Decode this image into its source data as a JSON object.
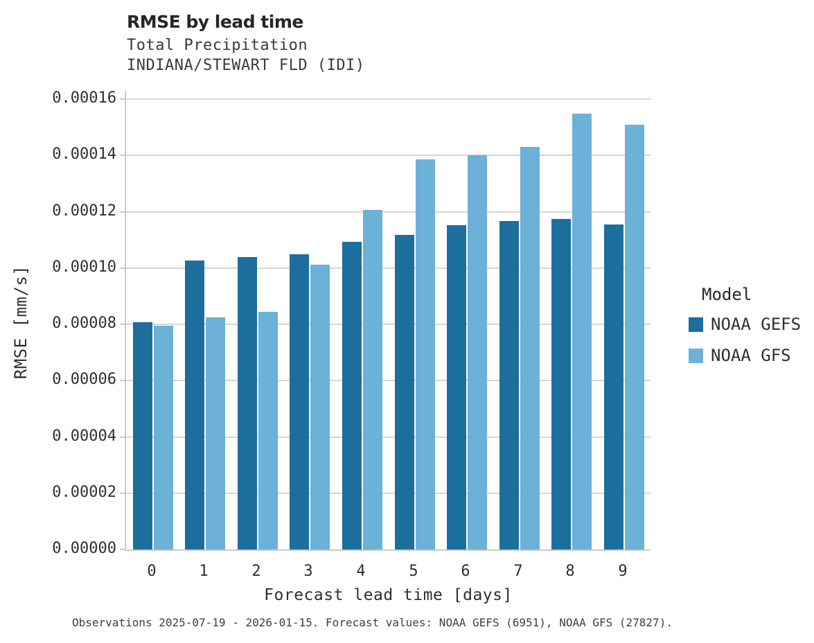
{
  "title": "RMSE by lead time",
  "subtitle1": "Total Precipitation",
  "subtitle2": "INDIANA/STEWART FLD (IDI)",
  "footer": "Observations 2025-07-19 - 2026-01-15. Forecast values: NOAA GEFS (6951), NOAA GFS (27827).",
  "chart_data": {
    "type": "bar",
    "categories": [
      "0",
      "1",
      "2",
      "3",
      "4",
      "5",
      "6",
      "7",
      "8",
      "9"
    ],
    "series": [
      {
        "name": "NOAA GEFS",
        "color": "#1c6e9c",
        "values": [
          8.08e-05,
          0.0001026,
          0.0001038,
          0.000105,
          0.0001093,
          0.0001118,
          0.0001152,
          0.0001166,
          0.0001175,
          0.0001156
        ]
      },
      {
        "name": "NOAA GFS",
        "color": "#6cb1d8",
        "values": [
          7.95e-05,
          8.26e-05,
          8.45e-05,
          0.0001011,
          0.0001206,
          0.0001386,
          0.00014,
          0.000143,
          0.0001549,
          0.0001509
        ]
      }
    ],
    "title": "RMSE by lead time",
    "xlabel": "Forecast lead time [days]",
    "ylabel": "RMSE [mm/s]",
    "ylim": [
      0,
      0.000163
    ],
    "yticks": [
      "0.00000",
      "0.00002",
      "0.00004",
      "0.00006",
      "0.00008",
      "0.00010",
      "0.00012",
      "0.00014",
      "0.00016"
    ],
    "grid": true,
    "legend_title": "Model",
    "legend_position": "right",
    "colors": {
      "gridline": "#d6d6d6",
      "axis": "#c9c9c9",
      "background": "#ffffff"
    }
  }
}
